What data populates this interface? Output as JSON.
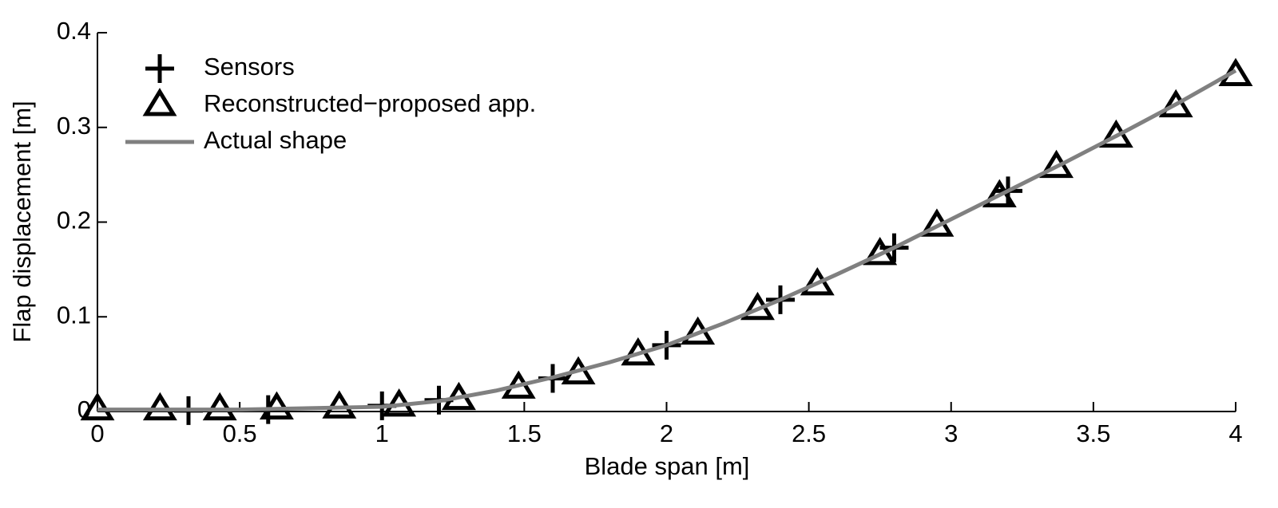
{
  "chart_data": {
    "type": "line",
    "xlabel": "Blade span [m]",
    "ylabel": "Flap displacement [m]",
    "xlim": [
      0,
      4
    ],
    "xticks": [
      0,
      0.5,
      1,
      1.5,
      2,
      2.5,
      3,
      3.5,
      4
    ],
    "ylim": [
      0,
      0.4
    ],
    "yticks": [
      0,
      0.1,
      0.2,
      0.3,
      0.4
    ],
    "legend": "upper left",
    "series": [
      {
        "name": "Sensors",
        "color": "#000000",
        "marker": "plus",
        "line": false,
        "x": [
          0.32,
          0.6,
          1.0,
          1.2,
          1.6,
          2.0,
          2.4,
          2.8,
          3.2
        ],
        "values": [
          0.001,
          0.002,
          0.006,
          0.012,
          0.035,
          0.07,
          0.118,
          0.173,
          0.233
        ]
      },
      {
        "name": "Reconstructed−proposed app.",
        "color": "#000000",
        "marker": "triangle",
        "line": false,
        "x": [
          0,
          0.22,
          0.43,
          0.63,
          0.85,
          1.06,
          1.27,
          1.48,
          1.69,
          1.9,
          2.11,
          2.32,
          2.53,
          2.75,
          2.95,
          3.17,
          3.37,
          3.58,
          3.79,
          4.0
        ],
        "values": [
          0.002,
          0.002,
          0.002,
          0.003,
          0.004,
          0.006,
          0.013,
          0.025,
          0.04,
          0.06,
          0.082,
          0.108,
          0.134,
          0.166,
          0.196,
          0.227,
          0.258,
          0.29,
          0.322,
          0.355
        ]
      },
      {
        "name": "Actual shape",
        "color": "#808080",
        "marker": "none",
        "line": true,
        "x": [
          0,
          0.5,
          1,
          1.2,
          1.4,
          1.6,
          1.8,
          2,
          2.2,
          2.4,
          2.6,
          2.8,
          3,
          3.2,
          3.4,
          3.6,
          3.8,
          4
        ],
        "values": [
          0.002,
          0.002,
          0.005,
          0.011,
          0.022,
          0.036,
          0.052,
          0.07,
          0.093,
          0.118,
          0.145,
          0.173,
          0.203,
          0.233,
          0.263,
          0.294,
          0.326,
          0.36
        ]
      }
    ]
  }
}
